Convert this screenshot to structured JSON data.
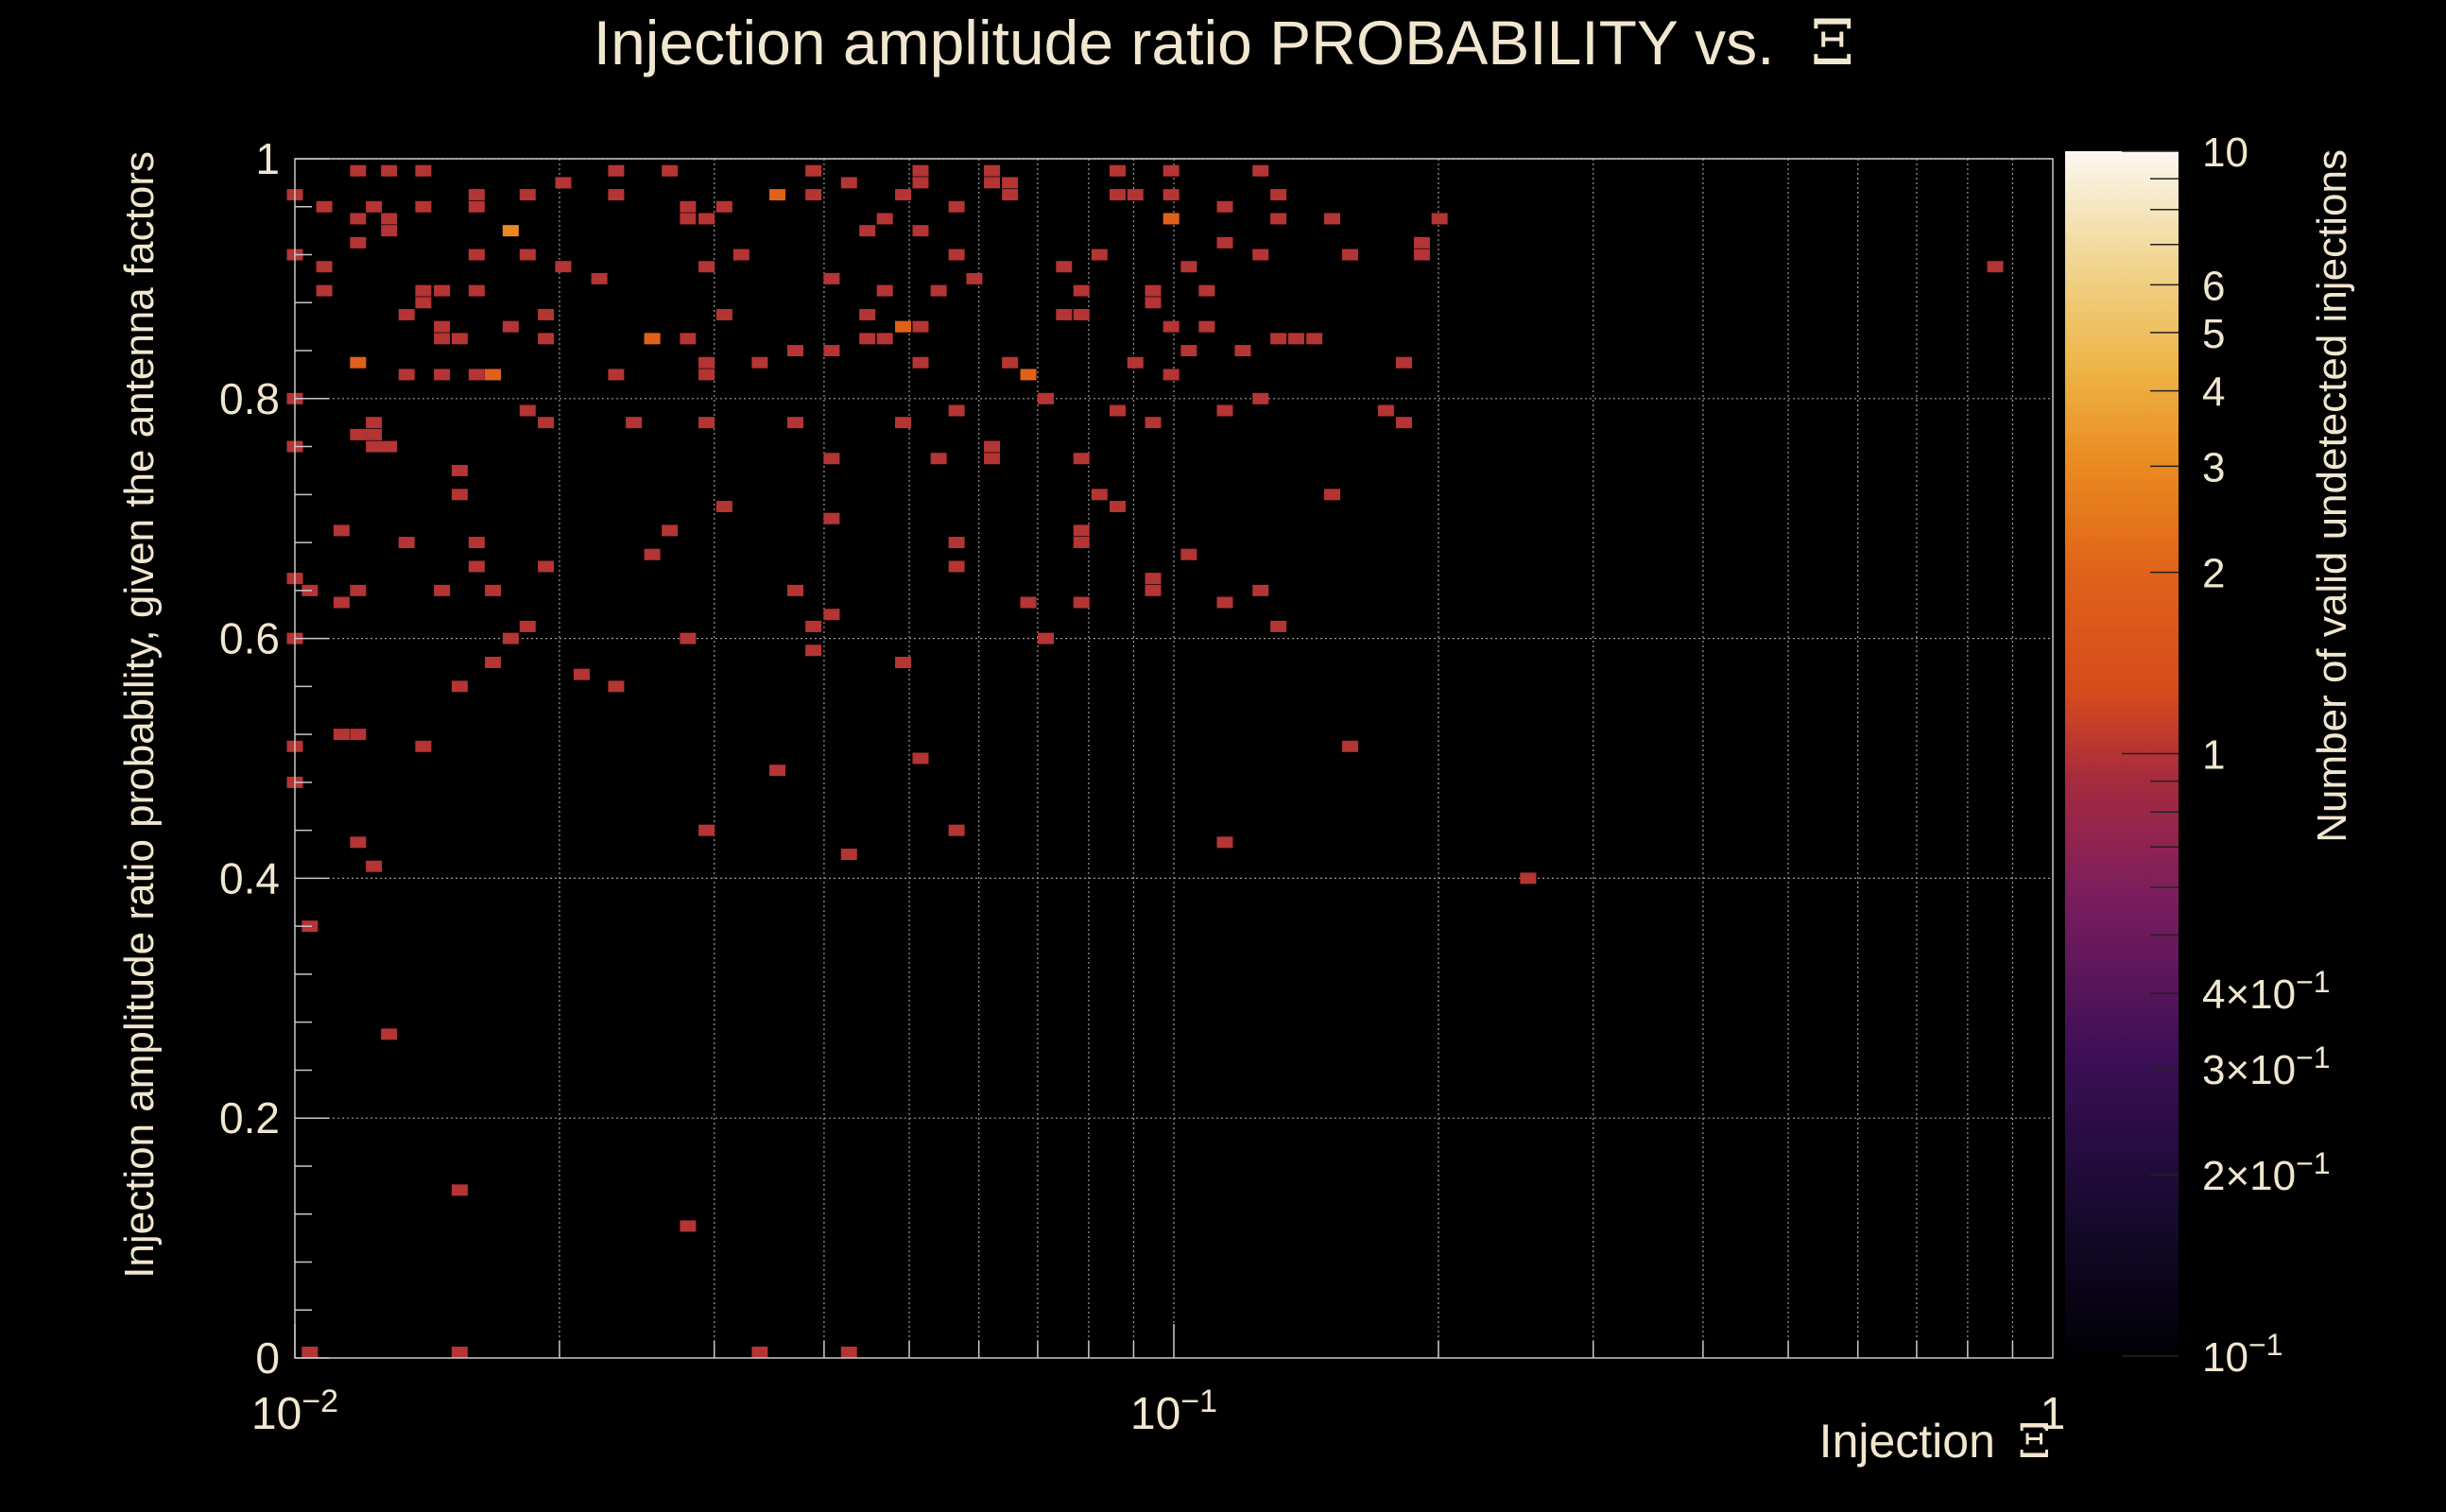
{
  "colors": {
    "text": "#f1e6cf",
    "background": "#000000",
    "grid": "#9a9a9a",
    "frame": "#c8c8c8"
  },
  "chart_data": {
    "type": "heatmap",
    "title": "Injection amplitude ratio PROBABILITY vs.",
    "title_symbol": "Ξ",
    "xlabel": "Injection",
    "xlabel_symbol": "Ξ",
    "ylabel": "Injection amplitude ratio probability, given the antenna factors",
    "zlabel": "Number of valid undetected injections",
    "x_scale": "log",
    "xlim": [
      0.01,
      1
    ],
    "ylim": [
      0,
      1
    ],
    "zlim": [
      0.1,
      10
    ],
    "z_scale": "log",
    "grid": true,
    "x_tick_labels": [
      {
        "value": 0.01,
        "label": "10",
        "exp": "−2"
      },
      {
        "value": 0.1,
        "label": "10",
        "exp": "−1"
      },
      {
        "value": 1,
        "label": "1",
        "exp": ""
      }
    ],
    "y_tick_labels": [
      {
        "value": 0,
        "label": "0"
      },
      {
        "value": 0.2,
        "label": "0.2"
      },
      {
        "value": 0.4,
        "label": "0.4"
      },
      {
        "value": 0.6,
        "label": "0.6"
      },
      {
        "value": 0.8,
        "label": "0.8"
      },
      {
        "value": 1,
        "label": "1"
      }
    ],
    "z_tick_labels": [
      {
        "value": 10,
        "label": "10",
        "exp": ""
      },
      {
        "value": 6,
        "label": "6",
        "exp": ""
      },
      {
        "value": 5,
        "label": "5",
        "exp": ""
      },
      {
        "value": 4,
        "label": "4",
        "exp": ""
      },
      {
        "value": 3,
        "label": "3",
        "exp": ""
      },
      {
        "value": 2,
        "label": "2",
        "exp": ""
      },
      {
        "value": 1,
        "label": "1",
        "exp": ""
      },
      {
        "value": 0.4,
        "label": "4×10",
        "exp": "−1"
      },
      {
        "value": 0.3,
        "label": "3×10",
        "exp": "−1"
      },
      {
        "value": 0.2,
        "label": "2×10",
        "exp": "−1"
      },
      {
        "value": 0.1,
        "label": "10",
        "exp": "−1"
      }
    ],
    "cells": [
      [
        0.01,
        0.97,
        1
      ],
      [
        0.01,
        0.92,
        1
      ],
      [
        0.01,
        0.8,
        1
      ],
      [
        0.01,
        0.76,
        1
      ],
      [
        0.01,
        0.65,
        1
      ],
      [
        0.01,
        0.6,
        1
      ],
      [
        0.01,
        0.51,
        1
      ],
      [
        0.01,
        0.48,
        1
      ],
      [
        0.0104,
        0.64,
        1
      ],
      [
        0.0104,
        0.36,
        1
      ],
      [
        0.0104,
        0.0,
        1
      ],
      [
        0.0108,
        0.96,
        1
      ],
      [
        0.0108,
        0.91,
        1
      ],
      [
        0.0108,
        0.89,
        1
      ],
      [
        0.0113,
        0.69,
        1
      ],
      [
        0.0113,
        0.63,
        1
      ],
      [
        0.0113,
        0.52,
        1
      ],
      [
        0.0118,
        0.99,
        1
      ],
      [
        0.0118,
        0.95,
        1
      ],
      [
        0.0118,
        0.93,
        1
      ],
      [
        0.0118,
        0.83,
        2
      ],
      [
        0.0118,
        0.77,
        1
      ],
      [
        0.0118,
        0.64,
        1
      ],
      [
        0.0118,
        0.52,
        1
      ],
      [
        0.0118,
        0.43,
        1
      ],
      [
        0.0123,
        0.96,
        1
      ],
      [
        0.0123,
        0.78,
        1
      ],
      [
        0.0123,
        0.77,
        1
      ],
      [
        0.0123,
        0.76,
        1
      ],
      [
        0.0123,
        0.41,
        1
      ],
      [
        0.0128,
        0.99,
        1
      ],
      [
        0.0128,
        0.95,
        1
      ],
      [
        0.0128,
        0.94,
        1
      ],
      [
        0.0128,
        0.76,
        1
      ],
      [
        0.0128,
        0.27,
        1
      ],
      [
        0.0134,
        0.87,
        1
      ],
      [
        0.0134,
        0.82,
        1
      ],
      [
        0.0134,
        0.68,
        1
      ],
      [
        0.014,
        0.99,
        1
      ],
      [
        0.014,
        0.96,
        1
      ],
      [
        0.014,
        0.89,
        1
      ],
      [
        0.014,
        0.88,
        1
      ],
      [
        0.014,
        0.51,
        1
      ],
      [
        0.0147,
        0.89,
        1
      ],
      [
        0.0147,
        0.86,
        1
      ],
      [
        0.0147,
        0.85,
        1
      ],
      [
        0.0147,
        0.82,
        1
      ],
      [
        0.0147,
        0.64,
        1
      ],
      [
        0.0154,
        0.85,
        1
      ],
      [
        0.0154,
        0.74,
        1
      ],
      [
        0.0154,
        0.72,
        1
      ],
      [
        0.0154,
        0.56,
        1
      ],
      [
        0.0154,
        0.14,
        1
      ],
      [
        0.0154,
        0.0,
        1
      ],
      [
        0.0161,
        0.97,
        1
      ],
      [
        0.0161,
        0.96,
        1
      ],
      [
        0.0161,
        0.92,
        1
      ],
      [
        0.0161,
        0.89,
        1
      ],
      [
        0.0161,
        0.82,
        1
      ],
      [
        0.0161,
        0.68,
        1
      ],
      [
        0.0161,
        0.66,
        1
      ],
      [
        0.0168,
        0.64,
        1
      ],
      [
        0.0168,
        0.58,
        1
      ],
      [
        0.0168,
        0.82,
        2
      ],
      [
        0.0176,
        0.94,
        3
      ],
      [
        0.0176,
        0.86,
        1
      ],
      [
        0.0176,
        0.6,
        1
      ],
      [
        0.0184,
        0.97,
        1
      ],
      [
        0.0184,
        0.92,
        1
      ],
      [
        0.0184,
        0.79,
        1
      ],
      [
        0.0184,
        0.61,
        1
      ],
      [
        0.0193,
        0.87,
        1
      ],
      [
        0.0193,
        0.85,
        1
      ],
      [
        0.0193,
        0.78,
        1
      ],
      [
        0.0193,
        0.66,
        1
      ],
      [
        0.0202,
        0.98,
        1
      ],
      [
        0.0202,
        0.91,
        1
      ],
      [
        0.0212,
        0.57,
        1
      ],
      [
        0.0222,
        0.9,
        1
      ],
      [
        0.0232,
        0.99,
        1
      ],
      [
        0.0232,
        0.97,
        1
      ],
      [
        0.0232,
        0.82,
        1
      ],
      [
        0.0232,
        0.56,
        1
      ],
      [
        0.0243,
        0.78,
        1
      ],
      [
        0.0255,
        0.85,
        2
      ],
      [
        0.0255,
        0.67,
        1
      ],
      [
        0.0267,
        0.99,
        1
      ],
      [
        0.0267,
        0.69,
        1
      ],
      [
        0.028,
        0.96,
        1
      ],
      [
        0.028,
        0.95,
        1
      ],
      [
        0.028,
        0.85,
        1
      ],
      [
        0.028,
        0.6,
        1
      ],
      [
        0.028,
        0.11,
        1
      ],
      [
        0.0294,
        0.95,
        1
      ],
      [
        0.0294,
        0.91,
        1
      ],
      [
        0.0294,
        0.83,
        1
      ],
      [
        0.0294,
        0.82,
        1
      ],
      [
        0.0294,
        0.78,
        1
      ],
      [
        0.0294,
        0.44,
        1
      ],
      [
        0.0308,
        0.96,
        1
      ],
      [
        0.0308,
        0.87,
        1
      ],
      [
        0.0308,
        0.71,
        1
      ],
      [
        0.0322,
        0.92,
        1
      ],
      [
        0.0338,
        0.83,
        1
      ],
      [
        0.0338,
        0.0,
        1
      ],
      [
        0.0354,
        0.97,
        2
      ],
      [
        0.0354,
        0.49,
        1
      ],
      [
        0.0371,
        0.84,
        1
      ],
      [
        0.0371,
        0.78,
        1
      ],
      [
        0.0371,
        0.64,
        1
      ],
      [
        0.0389,
        0.99,
        1
      ],
      [
        0.0389,
        0.97,
        1
      ],
      [
        0.0389,
        0.61,
        1
      ],
      [
        0.0389,
        0.59,
        1
      ],
      [
        0.0408,
        0.9,
        1
      ],
      [
        0.0408,
        0.84,
        1
      ],
      [
        0.0408,
        0.75,
        1
      ],
      [
        0.0408,
        0.7,
        1
      ],
      [
        0.0408,
        0.62,
        1
      ],
      [
        0.0427,
        0.98,
        1
      ],
      [
        0.0427,
        0.42,
        1
      ],
      [
        0.0427,
        0.0,
        1
      ],
      [
        0.0448,
        0.94,
        1
      ],
      [
        0.0448,
        0.87,
        1
      ],
      [
        0.0448,
        0.85,
        1
      ],
      [
        0.0469,
        0.95,
        1
      ],
      [
        0.0469,
        0.89,
        1
      ],
      [
        0.0469,
        0.85,
        1
      ],
      [
        0.0492,
        0.86,
        2
      ],
      [
        0.0492,
        0.78,
        1
      ],
      [
        0.0492,
        0.58,
        1
      ],
      [
        0.0492,
        0.97,
        1
      ],
      [
        0.0515,
        0.99,
        1
      ],
      [
        0.0515,
        0.98,
        1
      ],
      [
        0.0515,
        0.94,
        1
      ],
      [
        0.0515,
        0.86,
        1
      ],
      [
        0.0515,
        0.83,
        1
      ],
      [
        0.0515,
        0.5,
        1
      ],
      [
        0.054,
        0.89,
        1
      ],
      [
        0.054,
        0.75,
        1
      ],
      [
        0.0566,
        0.96,
        1
      ],
      [
        0.0566,
        0.92,
        1
      ],
      [
        0.0566,
        0.79,
        1
      ],
      [
        0.0566,
        0.68,
        1
      ],
      [
        0.0566,
        0.66,
        1
      ],
      [
        0.0566,
        0.44,
        1
      ],
      [
        0.0593,
        0.9,
        1
      ],
      [
        0.0621,
        0.99,
        1
      ],
      [
        0.0621,
        0.98,
        1
      ],
      [
        0.0621,
        0.76,
        1
      ],
      [
        0.0621,
        0.75,
        1
      ],
      [
        0.0651,
        0.98,
        1
      ],
      [
        0.0651,
        0.97,
        1
      ],
      [
        0.0651,
        0.83,
        1
      ],
      [
        0.0683,
        0.82,
        2
      ],
      [
        0.0683,
        0.63,
        1
      ],
      [
        0.0715,
        0.8,
        1
      ],
      [
        0.0715,
        0.6,
        1
      ],
      [
        0.075,
        0.91,
        1
      ],
      [
        0.075,
        0.87,
        1
      ],
      [
        0.0785,
        0.89,
        1
      ],
      [
        0.0785,
        0.87,
        1
      ],
      [
        0.0785,
        0.75,
        1
      ],
      [
        0.0785,
        0.69,
        1
      ],
      [
        0.0785,
        0.68,
        1
      ],
      [
        0.0785,
        0.63,
        1
      ],
      [
        0.0823,
        0.92,
        1
      ],
      [
        0.0823,
        0.72,
        1
      ],
      [
        0.0863,
        0.99,
        1
      ],
      [
        0.0863,
        0.97,
        1
      ],
      [
        0.0863,
        0.79,
        1
      ],
      [
        0.0863,
        0.71,
        1
      ],
      [
        0.0904,
        0.97,
        1
      ],
      [
        0.0904,
        0.83,
        1
      ],
      [
        0.0947,
        0.89,
        1
      ],
      [
        0.0947,
        0.88,
        1
      ],
      [
        0.0947,
        0.78,
        1
      ],
      [
        0.0947,
        0.65,
        1
      ],
      [
        0.0947,
        0.64,
        1
      ],
      [
        0.0993,
        0.99,
        1
      ],
      [
        0.0993,
        0.97,
        1
      ],
      [
        0.0993,
        0.95,
        2
      ],
      [
        0.0993,
        0.86,
        1
      ],
      [
        0.0993,
        0.82,
        1
      ],
      [
        0.104,
        0.91,
        1
      ],
      [
        0.104,
        0.84,
        1
      ],
      [
        0.104,
        0.67,
        1
      ],
      [
        0.109,
        0.89,
        1
      ],
      [
        0.109,
        0.86,
        1
      ],
      [
        0.1143,
        0.96,
        1
      ],
      [
        0.1143,
        0.93,
        1
      ],
      [
        0.1143,
        0.79,
        1
      ],
      [
        0.1143,
        0.63,
        1
      ],
      [
        0.1143,
        0.43,
        1
      ],
      [
        0.1198,
        0.84,
        1
      ],
      [
        0.1255,
        0.99,
        1
      ],
      [
        0.1255,
        0.92,
        1
      ],
      [
        0.1255,
        0.8,
        1
      ],
      [
        0.1255,
        0.64,
        1
      ],
      [
        0.1315,
        0.97,
        1
      ],
      [
        0.1315,
        0.95,
        1
      ],
      [
        0.1315,
        0.85,
        1
      ],
      [
        0.1315,
        0.61,
        1
      ],
      [
        0.1378,
        0.85,
        1
      ],
      [
        0.1445,
        0.85,
        1
      ],
      [
        0.1514,
        0.95,
        1
      ],
      [
        0.1514,
        0.72,
        1
      ],
      [
        0.1587,
        0.92,
        1
      ],
      [
        0.1587,
        0.51,
        1
      ],
      [
        0.1743,
        0.79,
        1
      ],
      [
        0.1827,
        0.83,
        1
      ],
      [
        0.1827,
        0.78,
        1
      ],
      [
        0.1915,
        0.93,
        1
      ],
      [
        0.1915,
        0.92,
        1
      ],
      [
        0.2006,
        0.95,
        1
      ],
      [
        0.253,
        0.4,
        1
      ],
      [
        0.86,
        0.91,
        1
      ]
    ]
  }
}
